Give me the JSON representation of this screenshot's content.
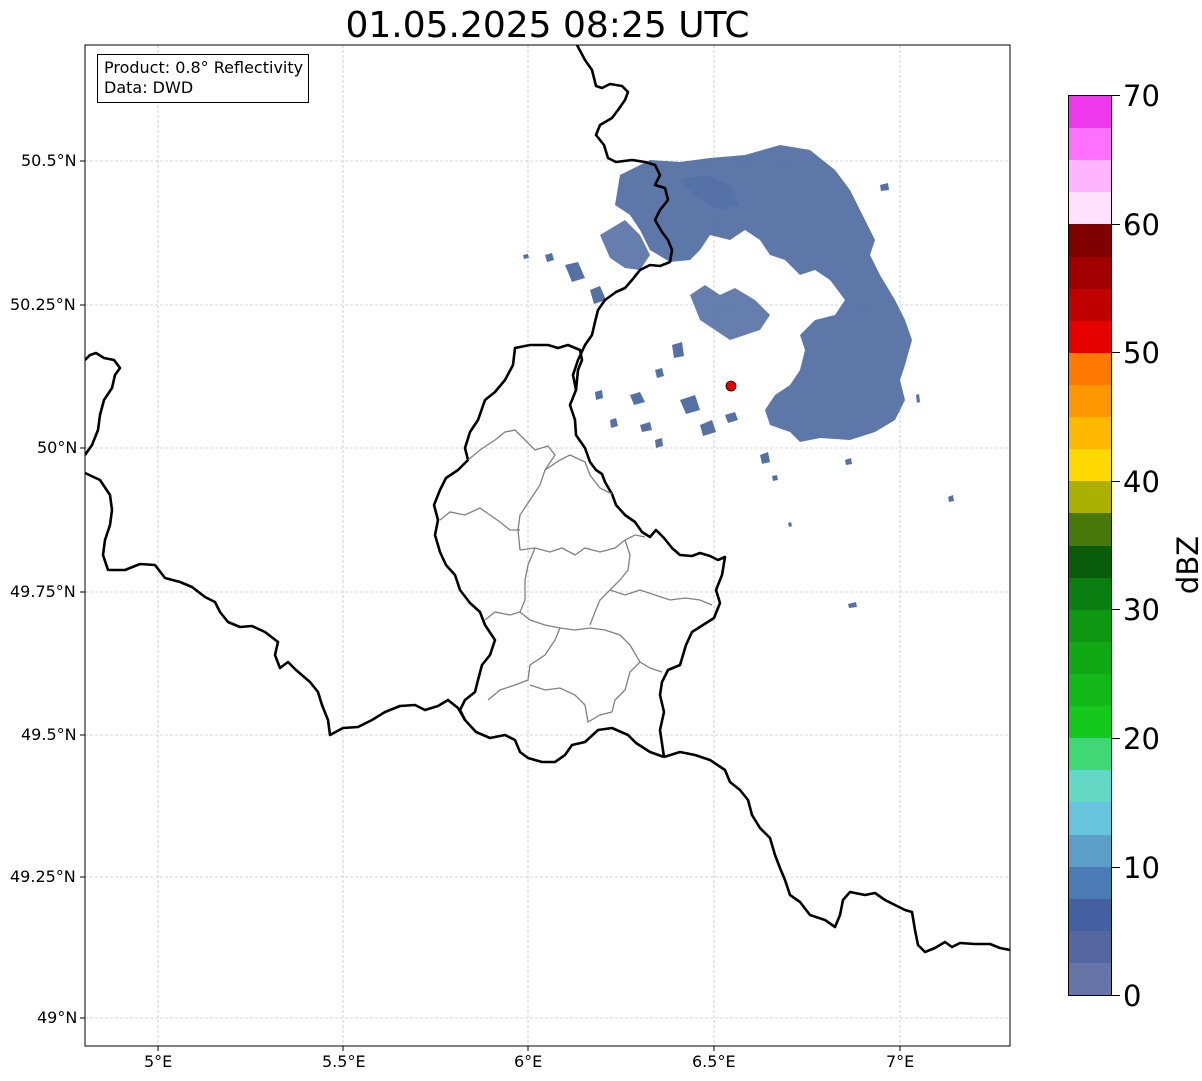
{
  "title": "01.05.2025 08:25 UTC",
  "infobox": {
    "product": "Product: 0.8° Reflectivity",
    "source": "Data: DWD"
  },
  "axes": {
    "lon_ticks": [
      "5°E",
      "5.5°E",
      "6°E",
      "6.5°E",
      "7°E"
    ],
    "lat_ticks": [
      "50.5°N",
      "50.25°N",
      "50°N",
      "49.75°N",
      "49.5°N",
      "49.25°N",
      "49°N"
    ],
    "lon_range": [
      4.8,
      7.3
    ],
    "lat_range": [
      48.95,
      50.7
    ],
    "grid": true
  },
  "radar_site": {
    "lon": 6.55,
    "lat": 50.11,
    "color": "#e60000"
  },
  "colorbar": {
    "unit": "dBZ",
    "range": [
      0,
      70
    ],
    "tick_labels": [
      "0",
      "10",
      "20",
      "30",
      "40",
      "50",
      "60",
      "70"
    ],
    "colors": [
      "#6674a8",
      "#5467a0",
      "#4460a0",
      "#4a7bb4",
      "#5b9ec8",
      "#68c4dc",
      "#62d8c4",
      "#3fd874",
      "#14c81c",
      "#12b818",
      "#10a814",
      "#0e9812",
      "#0a7e10",
      "#085c0a",
      "#48780a",
      "#acb000",
      "#ffd800",
      "#ffb800",
      "#ff9800",
      "#ff7800",
      "#e60000",
      "#c00000",
      "#a00000",
      "#800000",
      "#ffe0ff",
      "#ffb4ff",
      "#ff70ff",
      "#ee38ee"
    ]
  },
  "echo_color": "#5470a4"
}
